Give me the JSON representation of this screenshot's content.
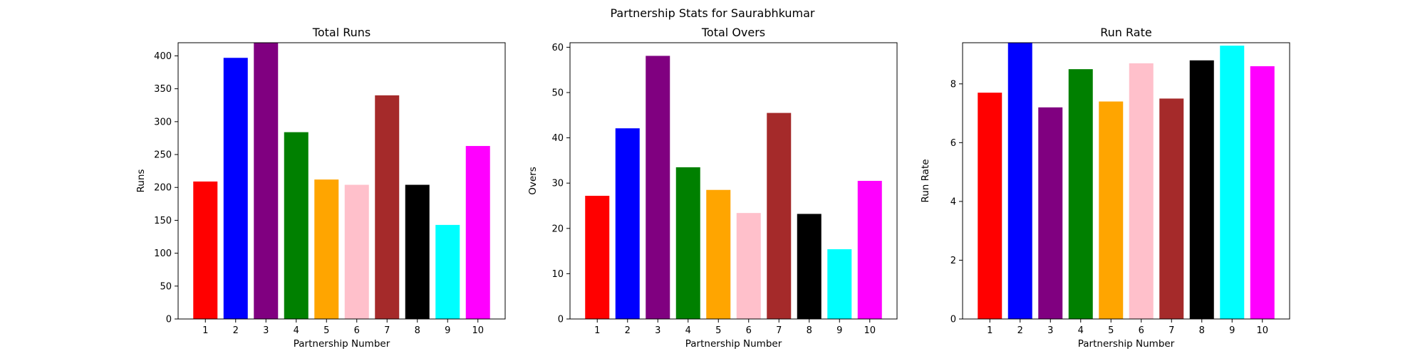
{
  "suptitle": "Partnership Stats for Saurabhkumar",
  "chart_data": [
    {
      "type": "bar",
      "title": "Total Runs",
      "xlabel": "Partnership Number",
      "ylabel": "Runs",
      "categories": [
        "1",
        "2",
        "3",
        "4",
        "5",
        "6",
        "7",
        "8",
        "9",
        "10"
      ],
      "values": [
        209,
        397,
        420,
        284,
        212,
        204,
        340,
        204,
        143,
        263
      ],
      "ylim": [
        0,
        420
      ],
      "yticks": [
        0,
        50,
        100,
        150,
        200,
        250,
        300,
        350,
        400
      ],
      "grid": false,
      "colors": [
        "#ff0000",
        "#0000ff",
        "#800080",
        "#008000",
        "#ffa500",
        "#ffc0cb",
        "#a52a2a",
        "#000000",
        "#00ffff",
        "#ff00ff"
      ]
    },
    {
      "type": "bar",
      "title": "Total Overs",
      "xlabel": "Partnership Number",
      "ylabel": "Overs",
      "categories": [
        "1",
        "2",
        "3",
        "4",
        "5",
        "6",
        "7",
        "8",
        "9",
        "10"
      ],
      "values": [
        27.2,
        42.1,
        58.1,
        33.5,
        28.5,
        23.4,
        45.5,
        23.2,
        15.4,
        30.5
      ],
      "ylim": [
        0,
        61
      ],
      "yticks": [
        0,
        10,
        20,
        30,
        40,
        50,
        60
      ],
      "grid": false,
      "colors": [
        "#ff0000",
        "#0000ff",
        "#800080",
        "#008000",
        "#ffa500",
        "#ffc0cb",
        "#a52a2a",
        "#000000",
        "#00ffff",
        "#ff00ff"
      ]
    },
    {
      "type": "bar",
      "title": "Run Rate",
      "xlabel": "Partnership Number",
      "ylabel": "Run Rate",
      "categories": [
        "1",
        "2",
        "3",
        "4",
        "5",
        "6",
        "7",
        "8",
        "9",
        "10"
      ],
      "values": [
        7.7,
        9.4,
        7.2,
        8.5,
        7.4,
        8.7,
        7.5,
        8.8,
        9.3,
        8.6
      ],
      "ylim": [
        0,
        9.4
      ],
      "yticks": [
        0,
        2,
        4,
        6,
        8
      ],
      "grid": false,
      "colors": [
        "#ff0000",
        "#0000ff",
        "#800080",
        "#008000",
        "#ffa500",
        "#ffc0cb",
        "#a52a2a",
        "#000000",
        "#00ffff",
        "#ff00ff"
      ]
    }
  ]
}
